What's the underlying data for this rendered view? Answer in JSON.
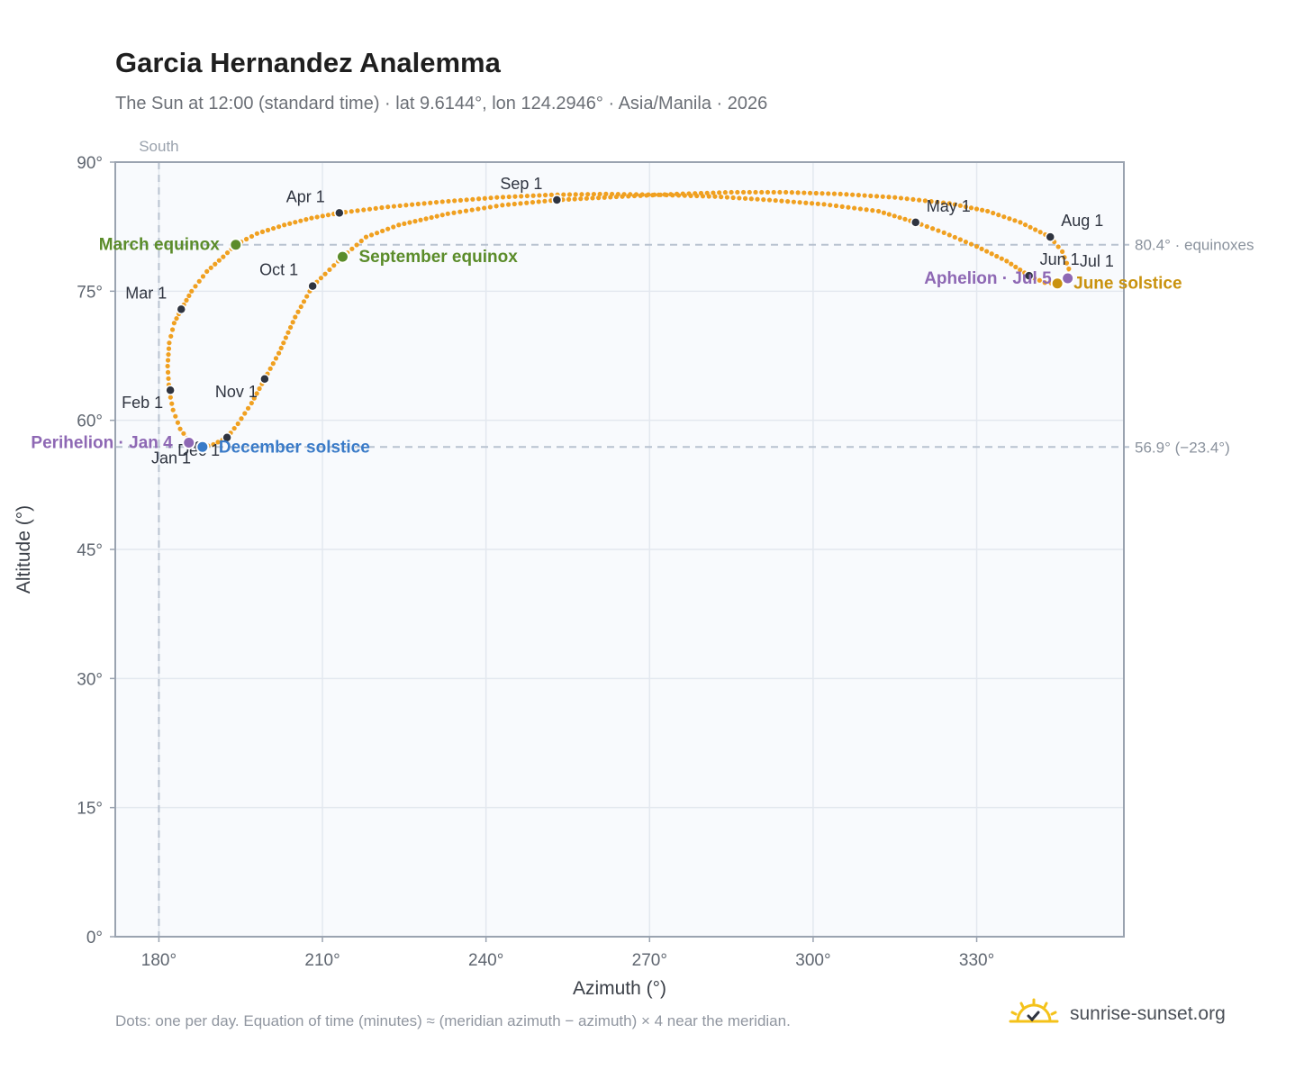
{
  "header": {
    "title": "Garcia Hernandez Analemma",
    "subtitle": "The Sun at 12:00 (standard time) · lat 9.6144°, lon 124.2946° · Asia/Manila · 2026"
  },
  "footer": {
    "note": "Dots: one per day. Equation of time (minutes) ≈ (meridian azimuth − azimuth) × 4 near the meridian.",
    "brand": "sunrise-sunset.org"
  },
  "colors": {
    "path": "#f0a020",
    "month_marker": "#2f3440",
    "march_equinox": "#5b8c2a",
    "september_equinox": "#5b8c2a",
    "december_solstice": "#3a7bc8",
    "june_solstice": "#c9920e",
    "perihelion": "#8e68b4",
    "aphelion": "#8e68b4",
    "plot_bg": "#f8fafd",
    "grid": "#e3e8ef",
    "reference": "#b8c2d0",
    "axis_text": "#5f6670"
  },
  "chart_data": {
    "type": "scatter",
    "title": "Garcia Hernandez Analemma",
    "xlabel": "Azimuth (°)",
    "ylabel": "Altitude (°)",
    "xlim": [
      172,
      357
    ],
    "ylim": [
      0,
      90
    ],
    "xticks": [
      {
        "value": 180,
        "label": "180°"
      },
      {
        "value": 210,
        "label": "210°"
      },
      {
        "value": 240,
        "label": "240°"
      },
      {
        "value": 270,
        "label": "270°"
      },
      {
        "value": 300,
        "label": "300°"
      },
      {
        "value": 330,
        "label": "330°"
      }
    ],
    "yticks": [
      {
        "value": 0,
        "label": "0°"
      },
      {
        "value": 15,
        "label": "15°"
      },
      {
        "value": 30,
        "label": "30°"
      },
      {
        "value": 45,
        "label": "45°"
      },
      {
        "value": 60,
        "label": "60°"
      },
      {
        "value": 75,
        "label": "75°"
      },
      {
        "value": 90,
        "label": "90°"
      }
    ],
    "grid": true,
    "meridian": {
      "azimuth": 180,
      "label": "South"
    },
    "reference_lines": [
      {
        "altitude": 80.4,
        "label": "80.4° · equinoxes"
      },
      {
        "altitude": 56.9,
        "label": "56.9° (−23.4°)"
      }
    ],
    "daily_path": [
      {
        "az": 188.0,
        "alt": 56.9
      },
      {
        "az": 185.8,
        "alt": 57.4
      },
      {
        "az": 183.9,
        "alt": 59.0
      },
      {
        "az": 182.6,
        "alt": 61.2
      },
      {
        "az": 181.9,
        "alt": 63.4
      },
      {
        "az": 181.6,
        "alt": 66.3
      },
      {
        "az": 181.9,
        "alt": 69.0
      },
      {
        "az": 182.8,
        "alt": 71.3
      },
      {
        "az": 184.1,
        "alt": 72.9
      },
      {
        "az": 186.0,
        "alt": 75.0
      },
      {
        "az": 188.8,
        "alt": 77.3
      },
      {
        "az": 191.8,
        "alt": 79.0
      },
      {
        "az": 194.1,
        "alt": 80.4
      },
      {
        "az": 198.0,
        "alt": 81.7
      },
      {
        "az": 203.0,
        "alt": 82.7
      },
      {
        "az": 208.0,
        "alt": 83.5
      },
      {
        "az": 213.1,
        "alt": 84.1
      },
      {
        "az": 222.0,
        "alt": 84.8
      },
      {
        "az": 232.0,
        "alt": 85.4
      },
      {
        "az": 242.0,
        "alt": 85.9
      },
      {
        "az": 252.0,
        "alt": 86.2
      },
      {
        "az": 262.0,
        "alt": 86.3
      },
      {
        "az": 272.0,
        "alt": 86.2
      },
      {
        "az": 282.0,
        "alt": 86.0
      },
      {
        "az": 292.0,
        "alt": 85.6
      },
      {
        "az": 302.0,
        "alt": 85.1
      },
      {
        "az": 312.0,
        "alt": 84.3
      },
      {
        "az": 318.8,
        "alt": 83.0
      },
      {
        "az": 324.0,
        "alt": 81.8
      },
      {
        "az": 330.0,
        "alt": 80.2
      },
      {
        "az": 335.5,
        "alt": 78.5
      },
      {
        "az": 339.6,
        "alt": 76.8
      },
      {
        "az": 342.5,
        "alt": 76.0
      },
      {
        "az": 344.8,
        "alt": 75.9
      },
      {
        "az": 346.7,
        "alt": 76.5
      },
      {
        "az": 346.9,
        "alt": 77.6
      },
      {
        "az": 345.7,
        "alt": 79.6
      },
      {
        "az": 343.5,
        "alt": 81.3
      },
      {
        "az": 338.0,
        "alt": 83.0
      },
      {
        "az": 332.0,
        "alt": 84.3
      },
      {
        "az": 325.0,
        "alt": 85.2
      },
      {
        "az": 315.0,
        "alt": 85.9
      },
      {
        "az": 305.0,
        "alt": 86.3
      },
      {
        "az": 295.0,
        "alt": 86.5
      },
      {
        "az": 285.0,
        "alt": 86.5
      },
      {
        "az": 275.0,
        "alt": 86.3
      },
      {
        "az": 265.0,
        "alt": 86.0
      },
      {
        "az": 253.0,
        "alt": 85.6
      },
      {
        "az": 243.0,
        "alt": 85.0
      },
      {
        "az": 233.0,
        "alt": 84.0
      },
      {
        "az": 224.0,
        "alt": 82.7
      },
      {
        "az": 218.0,
        "alt": 81.3
      },
      {
        "az": 213.7,
        "alt": 79.0
      },
      {
        "az": 210.5,
        "alt": 77.0
      },
      {
        "az": 208.2,
        "alt": 75.6
      },
      {
        "az": 205.0,
        "alt": 72.0
      },
      {
        "az": 202.0,
        "alt": 67.8
      },
      {
        "az": 199.4,
        "alt": 64.8
      },
      {
        "az": 197.0,
        "alt": 62.0
      },
      {
        "az": 194.5,
        "alt": 59.6
      },
      {
        "az": 192.5,
        "alt": 58.0
      },
      {
        "az": 190.0,
        "alt": 57.2
      },
      {
        "az": 188.0,
        "alt": 56.9
      }
    ],
    "month_markers": [
      {
        "label": "Jan 1",
        "az": 187.2,
        "alt": 57.1,
        "label_pos": "below-left"
      },
      {
        "label": "Feb 1",
        "az": 182.1,
        "alt": 63.5,
        "label_pos": "below-left"
      },
      {
        "label": "Mar 1",
        "az": 184.1,
        "alt": 72.9,
        "label_pos": "above-left"
      },
      {
        "label": "Apr 1",
        "az": 213.1,
        "alt": 84.1,
        "label_pos": "above-left"
      },
      {
        "label": "May 1",
        "az": 318.8,
        "alt": 83.0,
        "label_pos": "above-right"
      },
      {
        "label": "Jun 1",
        "az": 339.6,
        "alt": 76.8,
        "label_pos": "above-right"
      },
      {
        "label": "Jul 1",
        "az": 346.9,
        "alt": 76.6,
        "label_pos": "above-right"
      },
      {
        "label": "Aug 1",
        "az": 343.5,
        "alt": 81.3,
        "label_pos": "above-right"
      },
      {
        "label": "Sep 1",
        "az": 253.0,
        "alt": 85.6,
        "label_pos": "above-left"
      },
      {
        "label": "Oct 1",
        "az": 208.2,
        "alt": 75.6,
        "label_pos": "above-left"
      },
      {
        "label": "Nov 1",
        "az": 199.4,
        "alt": 64.8,
        "label_pos": "below-left"
      },
      {
        "label": "Dec 1",
        "az": 192.5,
        "alt": 58.0,
        "label_pos": "below-left"
      }
    ],
    "events": [
      {
        "key": "march_equinox",
        "label": "March equinox",
        "az": 194.1,
        "alt": 80.4,
        "label_pos": "left"
      },
      {
        "key": "september_equinox",
        "label": "September equinox",
        "az": 213.7,
        "alt": 79.0,
        "label_pos": "right"
      },
      {
        "key": "december_solstice",
        "label": "December solstice",
        "az": 188.0,
        "alt": 56.9,
        "label_pos": "right"
      },
      {
        "key": "june_solstice",
        "label": "June solstice",
        "az": 344.8,
        "alt": 75.9,
        "label_pos": "right"
      },
      {
        "key": "perihelion",
        "label": "Perihelion · Jan 4",
        "az": 185.5,
        "alt": 57.4,
        "label_pos": "left"
      },
      {
        "key": "aphelion",
        "label": "Aphelion · Jul 5",
        "az": 346.7,
        "alt": 76.5,
        "label_pos": "left"
      }
    ]
  }
}
